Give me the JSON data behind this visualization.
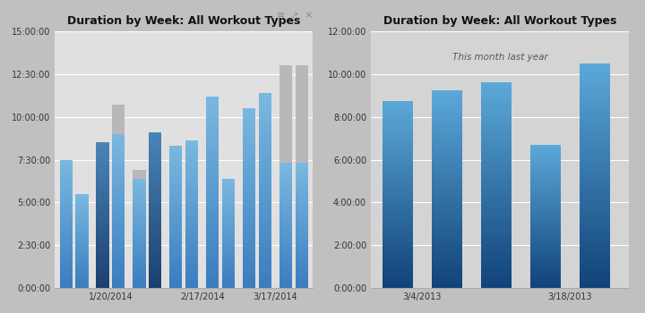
{
  "left_chart": {
    "title": "Duration by Week: All Workout Types",
    "background": "#e0e0e0",
    "bar_specs": [
      {
        "x": 0,
        "blue": 7.5,
        "gray": 0.0,
        "style": "light"
      },
      {
        "x": 1,
        "blue": 5.5,
        "gray": 0.0,
        "style": "light"
      },
      {
        "x": 2.3,
        "blue": 8.5,
        "gray": 0.0,
        "style": "dark"
      },
      {
        "x": 3.3,
        "blue": 9.0,
        "gray": 1.7,
        "style": "light"
      },
      {
        "x": 4.6,
        "blue": 6.4,
        "gray": 0.5,
        "style": "light"
      },
      {
        "x": 5.6,
        "blue": 9.1,
        "gray": 0.0,
        "style": "dark"
      },
      {
        "x": 6.9,
        "blue": 8.3,
        "gray": 0.0,
        "style": "light"
      },
      {
        "x": 7.9,
        "blue": 8.6,
        "gray": 0.0,
        "style": "light"
      },
      {
        "x": 9.2,
        "blue": 11.2,
        "gray": 0.0,
        "style": "light"
      },
      {
        "x": 10.2,
        "blue": 6.4,
        "gray": 0.0,
        "style": "light"
      },
      {
        "x": 11.5,
        "blue": 10.5,
        "gray": 0.0,
        "style": "light"
      },
      {
        "x": 12.5,
        "blue": 11.4,
        "gray": 0.0,
        "style": "light"
      },
      {
        "x": 13.8,
        "blue": 7.3,
        "gray": 5.7,
        "style": "light"
      },
      {
        "x": 14.8,
        "blue": 7.3,
        "gray": 5.7,
        "style": "light"
      }
    ],
    "xtick_positions": [
      2.8,
      5.1,
      8.55,
      9.7,
      13.15
    ],
    "xtick_labels": [
      "1/20/2014",
      "",
      "2/17/2014",
      "",
      "3/17/2014"
    ],
    "ylim": [
      0,
      15.0
    ],
    "ytick_hours": [
      0,
      2.5,
      5.0,
      7.5,
      10.0,
      12.5,
      15.0
    ],
    "ytick_labels": [
      "0:00:00",
      "2:30:00",
      "5:00:00",
      "7:30:00",
      "10:00:00",
      "12:30:00",
      "15:00:00"
    ]
  },
  "right_chart": {
    "title": "Duration by Week: All Workout Types",
    "subtitle": "This month last year",
    "background": "#d4d4d4",
    "bar_specs": [
      {
        "x": 0,
        "value": 8.75
      },
      {
        "x": 1.3,
        "value": 9.25
      },
      {
        "x": 2.6,
        "value": 9.6
      },
      {
        "x": 3.9,
        "value": 6.67
      },
      {
        "x": 5.2,
        "value": 10.5
      }
    ],
    "xtick_positions": [
      0.65,
      4.55
    ],
    "xtick_labels": [
      "3/4/2013",
      "3/18/2013"
    ],
    "ylim": [
      0,
      12.0
    ],
    "ytick_hours": [
      0,
      2.0,
      4.0,
      6.0,
      8.0,
      10.0,
      12.0
    ],
    "ytick_labels": [
      "0:00:00",
      "2:00:00",
      "4:00:00",
      "6:00:00",
      "8:00:00",
      "10:00:00",
      "12:00:00"
    ]
  },
  "bar_width": 0.8,
  "light_blue_top": "#7ab8e0",
  "light_blue_bot": "#3a7dbf",
  "dark_blue_top": "#4a85b8",
  "dark_blue_bot": "#1a3f6f",
  "right_blue_top": "#5ba8d8",
  "right_blue_bot": "#10437a",
  "gray_color": "#b8b8b8",
  "fig_bg": "#c0c0c0",
  "icon_color": "#888888"
}
